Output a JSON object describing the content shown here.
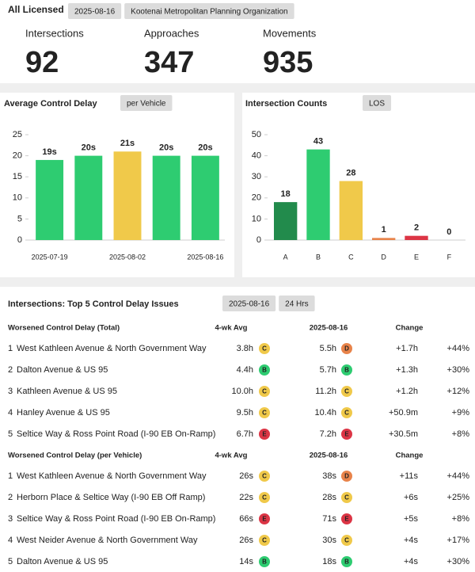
{
  "header": {
    "title": "All Licensed",
    "badges": [
      "2025-08-16",
      "Kootenai Metropolitan Planning Organization"
    ]
  },
  "stats": [
    {
      "label": "Intersections",
      "value": 92
    },
    {
      "label": "Approaches",
      "value": 347
    },
    {
      "label": "Movements",
      "value": 935
    }
  ],
  "chart_data": [
    {
      "type": "bar",
      "title": "Average Control Delay",
      "badge": "per Vehicle",
      "categories": [
        "2025-07-19",
        null,
        "2025-08-02",
        null,
        "2025-08-16"
      ],
      "values": [
        19,
        20,
        21,
        20,
        20
      ],
      "value_labels": [
        "19s",
        "20s",
        "21s",
        "20s",
        "20s"
      ],
      "colors": [
        "#2ecc71",
        "#2ecc71",
        "#f0c94a",
        "#2ecc71",
        "#2ecc71"
      ],
      "ylim": [
        0,
        25
      ],
      "yticks": [
        0,
        5,
        10,
        15,
        20,
        25
      ]
    },
    {
      "type": "bar",
      "title": "Intersection Counts",
      "badge": "LOS",
      "categories": [
        "A",
        "B",
        "C",
        "D",
        "E",
        "F"
      ],
      "values": [
        18,
        43,
        28,
        1,
        2,
        0
      ],
      "colors": [
        "#228b4c",
        "#2ecc71",
        "#f0c94a",
        "#e8834a",
        "#dc3545",
        "#999999"
      ],
      "ylim": [
        0,
        50
      ],
      "yticks": [
        0,
        10,
        20,
        30,
        40,
        50
      ]
    }
  ],
  "issues": {
    "title": "Intersections: Top 5 Control Delay Issues",
    "badges": [
      "2025-08-16",
      "24 Hrs"
    ],
    "los_colors": {
      "B": "#2ecc71",
      "C": "#f0c94a",
      "D": "#e8834a",
      "E": "#dc3545"
    },
    "tables": [
      {
        "headers": [
          "Worsened Control Delay (Total)",
          "4-wk Avg",
          "2025-08-16",
          "Change"
        ],
        "rows": [
          [
            "1",
            "West Kathleen Avenue & North Government Way",
            "3.8h",
            "C",
            "5.5h",
            "D",
            "+1.7h",
            "+44%"
          ],
          [
            "2",
            "Dalton Avenue & US 95",
            "4.4h",
            "B",
            "5.7h",
            "B",
            "+1.3h",
            "+30%"
          ],
          [
            "3",
            "Kathleen Avenue & US 95",
            "10.0h",
            "C",
            "11.2h",
            "C",
            "+1.2h",
            "+12%"
          ],
          [
            "4",
            "Hanley Avenue & US 95",
            "9.5h",
            "C",
            "10.4h",
            "C",
            "+50.9m",
            "+9%"
          ],
          [
            "5",
            "Seltice Way & Ross Point Road (I-90 EB On-Ramp)",
            "6.7h",
            "E",
            "7.2h",
            "E",
            "+30.5m",
            "+8%"
          ]
        ]
      },
      {
        "headers": [
          "Worsened Control Delay (per Vehicle)",
          "4-wk Avg",
          "2025-08-16",
          "Change"
        ],
        "rows": [
          [
            "1",
            "West Kathleen Avenue & North Government Way",
            "26s",
            "C",
            "38s",
            "D",
            "+11s",
            "+44%"
          ],
          [
            "2",
            "Herborn Place & Seltice Way (I-90 EB Off Ramp)",
            "22s",
            "C",
            "28s",
            "C",
            "+6s",
            "+25%"
          ],
          [
            "3",
            "Seltice Way & Ross Point Road (I-90 EB On-Ramp)",
            "66s",
            "E",
            "71s",
            "E",
            "+5s",
            "+8%"
          ],
          [
            "4",
            "West Neider Avenue & North Government Way",
            "26s",
            "C",
            "30s",
            "C",
            "+4s",
            "+17%"
          ],
          [
            "5",
            "Dalton Avenue & US 95",
            "14s",
            "B",
            "18s",
            "B",
            "+4s",
            "+30%"
          ]
        ]
      }
    ]
  }
}
